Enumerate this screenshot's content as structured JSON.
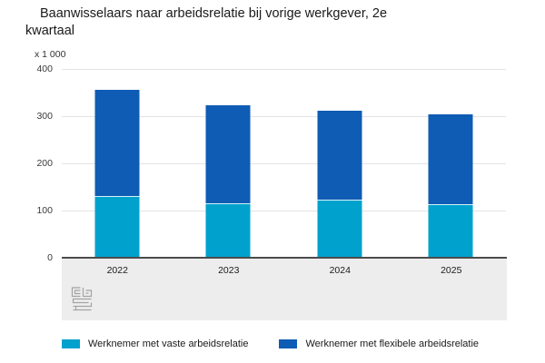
{
  "title": "Baanwisselaars naar arbeidsrelatie bij vorige werkgever, 2e kwartaal",
  "unit_label": "x 1 000",
  "colors": {
    "vast": "#00a1cd",
    "flex": "#0f5cb4",
    "gridline": "#e4e4e4",
    "axis": "#4c4c4c",
    "footer_band": "#ededed",
    "text": "#1a1a1a"
  },
  "chart_data": {
    "type": "bar",
    "stacked": true,
    "title": "Baanwisselaars naar arbeidsrelatie bij vorige werkgever, 2e kwartaal",
    "ylabel": "x 1 000",
    "xlabel": "",
    "categories": [
      "2022",
      "2023",
      "2024",
      "2025"
    ],
    "series": [
      {
        "name": "Werknemer met vaste arbeidsrelatie",
        "color": "#00a1cd",
        "values": [
          131,
          115,
          124,
          114
        ]
      },
      {
        "name": "Werknemer met flexibele arbeidsrelatie",
        "color": "#0f5cb4",
        "values": [
          224,
          209,
          188,
          190
        ]
      }
    ],
    "totals": [
      355,
      324,
      312,
      304
    ],
    "ylim": [
      0,
      400
    ],
    "yticks": [
      0,
      100,
      200,
      300,
      400
    ],
    "grid": true,
    "legend_position": "bottom"
  },
  "legend": {
    "items": [
      {
        "label": "Werknemer met vaste arbeidsrelatie",
        "color": "#00a1cd"
      },
      {
        "label": "Werknemer met flexibele arbeidsrelatie",
        "color": "#0f5cb4"
      }
    ]
  },
  "logo_name": "cbs-logo"
}
